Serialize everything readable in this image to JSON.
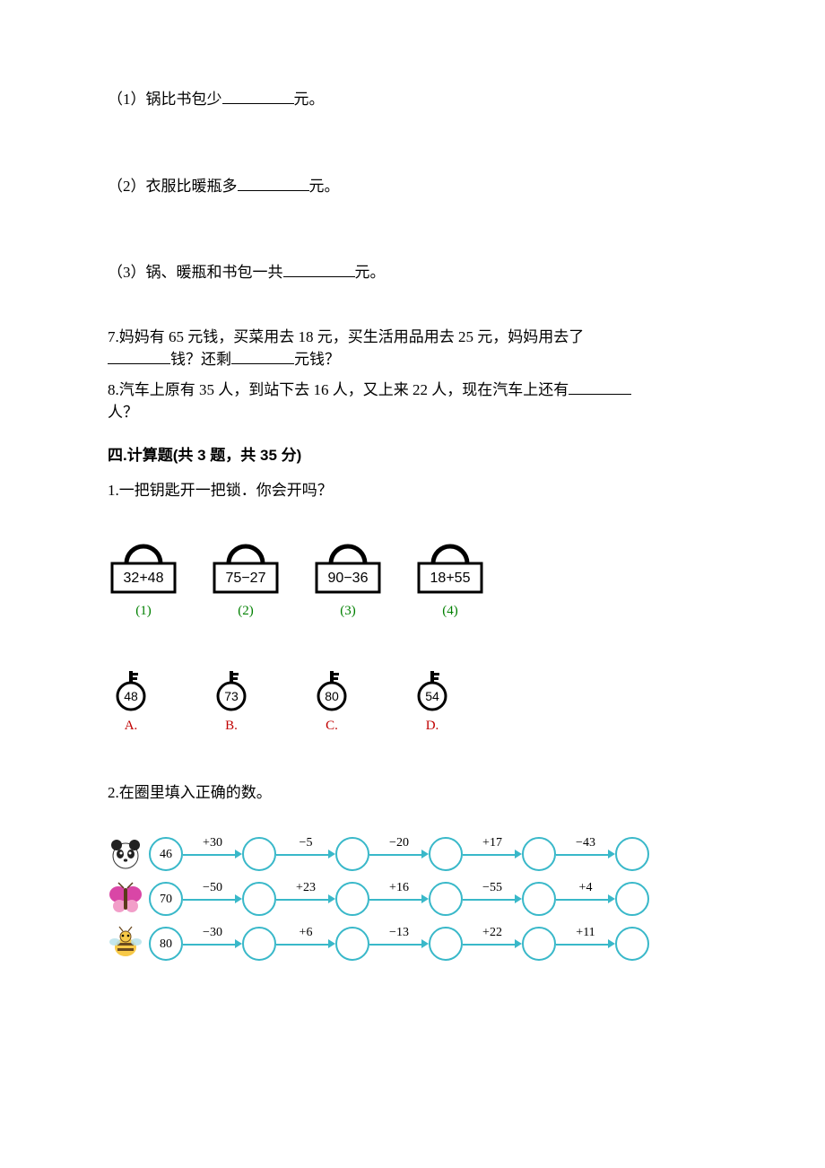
{
  "colors": {
    "text": "#000000",
    "green": "#008000",
    "red": "#c00000",
    "cyan": "#39b8c9",
    "bg": "#ffffff"
  },
  "q_sub": {
    "s1": "（1）锅比书包少",
    "s1_tail": "元。",
    "s2": "（2）衣服比暖瓶多",
    "s2_tail": "元。",
    "s3": "（3）锅、暖瓶和书包一共",
    "s3_tail": "元。"
  },
  "q7": {
    "line1a": "7.妈妈有 65 元钱，买菜用去 18 元，买生活用品用去 25 元，妈妈用去了",
    "line2a": "钱？还剩",
    "line2b": "元钱？"
  },
  "q8": {
    "a": "8.汽车上原有 35 人，到站下去 16 人，又上来 22 人，现在汽车上还有",
    "b": "人？"
  },
  "section4_title": "四.计算题(共 3 题，共 35 分)",
  "calc1": {
    "prompt": "1.一把钥匙开一把锁．你会开吗？",
    "locks": [
      {
        "expr": "32+48",
        "label": "(1)"
      },
      {
        "expr": "75−27",
        "label": "(2)"
      },
      {
        "expr": "90−36",
        "label": "(3)"
      },
      {
        "expr": "18+55",
        "label": "(4)"
      }
    ],
    "keys": [
      {
        "num": "48",
        "label": "A."
      },
      {
        "num": "73",
        "label": "B."
      },
      {
        "num": "80",
        "label": "C."
      },
      {
        "num": "54",
        "label": "D."
      }
    ]
  },
  "calc2": {
    "prompt": "2.在圈里填入正确的数。",
    "chains": [
      {
        "icon": "panda",
        "start": "46",
        "ops": [
          "+30",
          "−5",
          "−20",
          "+17",
          "−43"
        ]
      },
      {
        "icon": "butterfly",
        "start": "70",
        "ops": [
          "−50",
          "+23",
          "+16",
          "−55",
          "+4"
        ]
      },
      {
        "icon": "bee",
        "start": "80",
        "ops": [
          "−30",
          "+6",
          "−13",
          "+22",
          "+11"
        ]
      }
    ]
  }
}
